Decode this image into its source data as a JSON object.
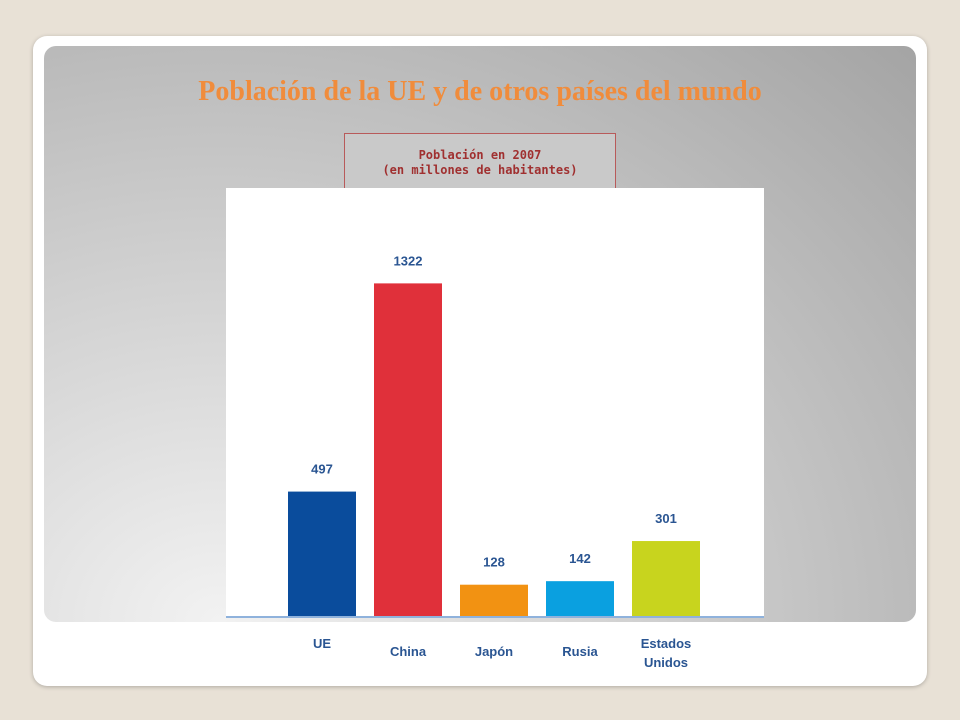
{
  "slide_title": "Población de la UE y de otros países del mundo",
  "chart_data": {
    "type": "bar",
    "title": "Población en 2007",
    "subtitle": "(en millones de habitantes)",
    "categories": [
      "UE",
      "China",
      "Japón",
      "Rusia",
      "Estados Unidos"
    ],
    "category_lines": [
      [
        "UE"
      ],
      [
        "China"
      ],
      [
        "Japón"
      ],
      [
        "Rusia"
      ],
      [
        "Estados",
        "Unidos"
      ]
    ],
    "values": [
      497,
      1322,
      128,
      142,
      301
    ],
    "bar_colors": [
      "#0a4c9c",
      "#e0303a",
      "#f29212",
      "#0aa0e0",
      "#c8d41e"
    ],
    "ylim": [
      0,
      1700
    ],
    "grid": false
  }
}
